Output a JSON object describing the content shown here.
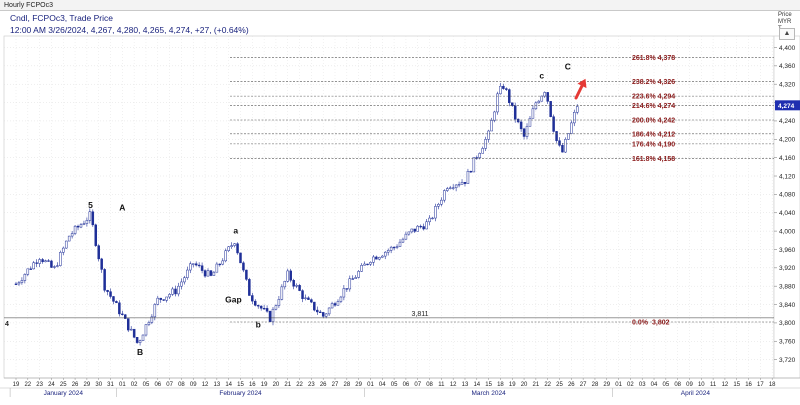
{
  "window": {
    "title": "Hourly FCPOc3"
  },
  "header": {
    "line1": "Cndl, FCPOc3, Trade Price",
    "line2": "12:00 AM 3/26/2024, 4,267, 4,280, 4,265, 4,274, +27, (+0.64%)"
  },
  "price_axis": {
    "caption1": "Price",
    "caption2": "MYR",
    "caption3": "T",
    "up_arrow": "▲"
  },
  "colors": {
    "up_candle": "#ffffff",
    "down_candle": "#1f2f98",
    "wick": "#1f2f98",
    "fib_line": "#555555",
    "fib_label": "#8b1a1a",
    "arrow": "#e53935",
    "last_price_bg": "#1f2fb0",
    "grid": "#dcdcdc"
  },
  "icons": {
    "target_arrow": "up-right-arrow-icon"
  },
  "chart_data": {
    "type": "candlestick",
    "ylim": [
      3680,
      4425
    ],
    "y_ticks": [
      "3,720",
      "3,760",
      "3,800",
      "3,840",
      "3,880",
      "3,920",
      "3,960",
      "4,000",
      "4,040",
      "4,080",
      "4,120",
      "4,160",
      "4,200",
      "4,240",
      "4,280",
      "4,320",
      "4,360",
      "4,400"
    ],
    "y_tick_values": [
      3720,
      3760,
      3800,
      3840,
      3880,
      3920,
      3960,
      4000,
      4040,
      4080,
      4120,
      4160,
      4200,
      4240,
      4280,
      4320,
      4360,
      4400
    ],
    "x_ticks": [
      "19",
      "22",
      "23",
      "24",
      "25",
      "26",
      "29",
      "30",
      "31",
      "01",
      "02",
      "05",
      "06",
      "07",
      "08",
      "09",
      "12",
      "13",
      "14",
      "15",
      "16",
      "19",
      "20",
      "21",
      "22",
      "23",
      "26",
      "27",
      "28",
      "29",
      "01",
      "04",
      "05",
      "06",
      "07",
      "08",
      "11",
      "12",
      "13",
      "14",
      "15",
      "18",
      "19",
      "20",
      "21",
      "22",
      "25",
      "26",
      "27",
      "28",
      "29",
      "01",
      "02",
      "03",
      "04",
      "05",
      "08",
      "09",
      "10",
      "11",
      "12",
      "15",
      "16",
      "17",
      "18"
    ],
    "months": [
      {
        "label": "January 2024",
        "start_index": 0,
        "end_index": 9
      },
      {
        "label": "February 2024",
        "start_index": 9,
        "end_index": 30
      },
      {
        "label": "March 2024",
        "start_index": 30,
        "end_index": 51
      },
      {
        "label": "April 2024",
        "start_index": 51,
        "end_index": 65
      }
    ],
    "candles": [],
    "path": [
      {
        "i": 0,
        "v": 3885
      },
      {
        "i": 2,
        "v": 3945
      },
      {
        "i": 3.2,
        "v": 3915
      },
      {
        "i": 4.5,
        "v": 3990
      },
      {
        "i": 6.3,
        "v": 4035
      },
      {
        "i": 7.5,
        "v": 3880
      },
      {
        "i": 9,
        "v": 3815
      },
      {
        "i": 10.3,
        "v": 3755
      },
      {
        "i": 12,
        "v": 3850
      },
      {
        "i": 13.5,
        "v": 3870
      },
      {
        "i": 15,
        "v": 3930
      },
      {
        "i": 16.5,
        "v": 3900
      },
      {
        "i": 18.5,
        "v": 3980
      },
      {
        "i": 19.8,
        "v": 3860
      },
      {
        "i": 21.5,
        "v": 3810
      },
      {
        "i": 23,
        "v": 3905
      },
      {
        "i": 24.5,
        "v": 3850
      },
      {
        "i": 26,
        "v": 3815
      },
      {
        "i": 28,
        "v": 3880
      },
      {
        "i": 30,
        "v": 3940
      },
      {
        "i": 32,
        "v": 3965
      },
      {
        "i": 33.5,
        "v": 4000
      },
      {
        "i": 35,
        "v": 4020
      },
      {
        "i": 36.5,
        "v": 4100
      },
      {
        "i": 38,
        "v": 4110
      },
      {
        "i": 39,
        "v": 4165
      },
      {
        "i": 40,
        "v": 4210
      },
      {
        "i": 40.8,
        "v": 4300
      },
      {
        "i": 41.3,
        "v": 4318
      },
      {
        "i": 42.2,
        "v": 4250
      },
      {
        "i": 43,
        "v": 4205
      },
      {
        "i": 44,
        "v": 4280
      },
      {
        "i": 44.8,
        "v": 4310
      },
      {
        "i": 45.7,
        "v": 4200
      },
      {
        "i": 46.2,
        "v": 4168
      },
      {
        "i": 47.5,
        "v": 4274
      }
    ],
    "last_price": "4,274",
    "last_price_value": 4274,
    "fib_levels": [
      {
        "label": "261.8% 4,378",
        "value": 4378
      },
      {
        "label": "238.2% 4,326",
        "value": 4326
      },
      {
        "label": "223.6% 4,294",
        "value": 4294
      },
      {
        "label": "214.6% 4,274",
        "value": 4274
      },
      {
        "label": "200.0% 4,242",
        "value": 4242
      },
      {
        "label": "186.4% 4,212",
        "value": 4212
      },
      {
        "label": "176.4% 4,190",
        "value": 4190
      },
      {
        "label": "161.8% 4,158",
        "value": 4158
      }
    ],
    "base_levels": [
      {
        "left_label": "4",
        "mid_label": "3,811",
        "value": 3811,
        "fib_label": "0.0%",
        "fib_value": "3,802",
        "fib_level": 3802
      }
    ],
    "wave_labels": [
      {
        "text": "5",
        "i": 6.3,
        "v": 4050
      },
      {
        "text": "A",
        "i": 9.0,
        "v": 4045
      },
      {
        "text": "B",
        "i": 10.5,
        "v": 3730
      },
      {
        "text": "a",
        "i": 18.6,
        "v": 3995
      },
      {
        "text": "Gap",
        "i": 18.4,
        "v": 3845
      },
      {
        "text": "b",
        "i": 20.5,
        "v": 3790
      },
      {
        "text": "c",
        "i": 44.5,
        "v": 4332
      },
      {
        "text": "C",
        "i": 46.7,
        "v": 4352
      }
    ],
    "target_arrow": {
      "from_i": 47.4,
      "from_v": 4290,
      "to_i": 48.2,
      "to_v": 4332
    }
  }
}
